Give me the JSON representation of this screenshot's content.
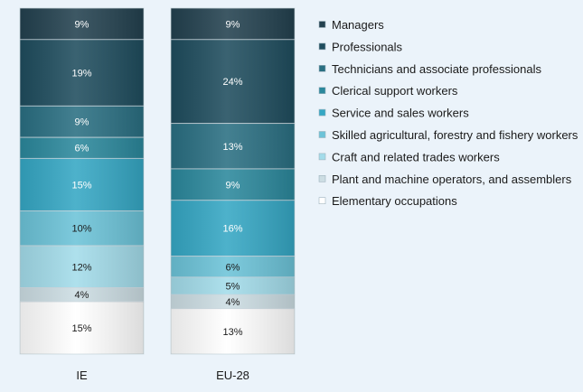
{
  "chart_data": {
    "type": "bar",
    "stacked": true,
    "orientation": "vertical",
    "normalized_percent": true,
    "categories": [
      "IE",
      "EU-28"
    ],
    "series": [
      {
        "name": "Managers",
        "values": [
          9,
          9
        ],
        "labels": [
          "9%",
          "9%"
        ],
        "color": "#23414f",
        "text_color": "#ffffff"
      },
      {
        "name": "Professionals",
        "values": [
          19,
          24
        ],
        "labels": [
          "19%",
          "24%"
        ],
        "color": "#1f4d5e",
        "text_color": "#ffffff"
      },
      {
        "name": "Technicians and associate professionals",
        "values": [
          9,
          13
        ],
        "labels": [
          "9%",
          "13%"
        ],
        "color": "#2a6f82",
        "text_color": "#ffffff"
      },
      {
        "name": "Clerical support workers",
        "values": [
          6,
          9
        ],
        "labels": [
          "6%",
          "9%"
        ],
        "color": "#2b889c",
        "text_color": "#ffffff"
      },
      {
        "name": "Service and sales workers",
        "values": [
          15,
          16
        ],
        "labels": [
          "15%",
          "16%"
        ],
        "color": "#35a7c4",
        "text_color": "#ffffff"
      },
      {
        "name": "Skilled agricultural, forestry and fishery workers",
        "values": [
          10,
          6
        ],
        "labels": [
          "10%",
          "6%"
        ],
        "color": "#6cc3d8",
        "text_color": "#1a1a1a"
      },
      {
        "name": "Craft and related trades workers",
        "values": [
          12,
          5
        ],
        "labels": [
          "12%",
          "5%"
        ],
        "color": "#a3dcea",
        "text_color": "#1a1a1a"
      },
      {
        "name": "Plant and machine operators, and assemblers",
        "values": [
          4,
          4
        ],
        "labels": [
          "4%",
          "4%"
        ],
        "color": "#ccdde3",
        "text_color": "#1a1a1a"
      },
      {
        "name": "Elementary occupations",
        "values": [
          15,
          13
        ],
        "labels": [
          "15%",
          "13%"
        ],
        "color": "#ffffff",
        "text_color": "#1a1a1a"
      }
    ],
    "legend_position": "right",
    "ylim": [
      0,
      100
    ]
  }
}
